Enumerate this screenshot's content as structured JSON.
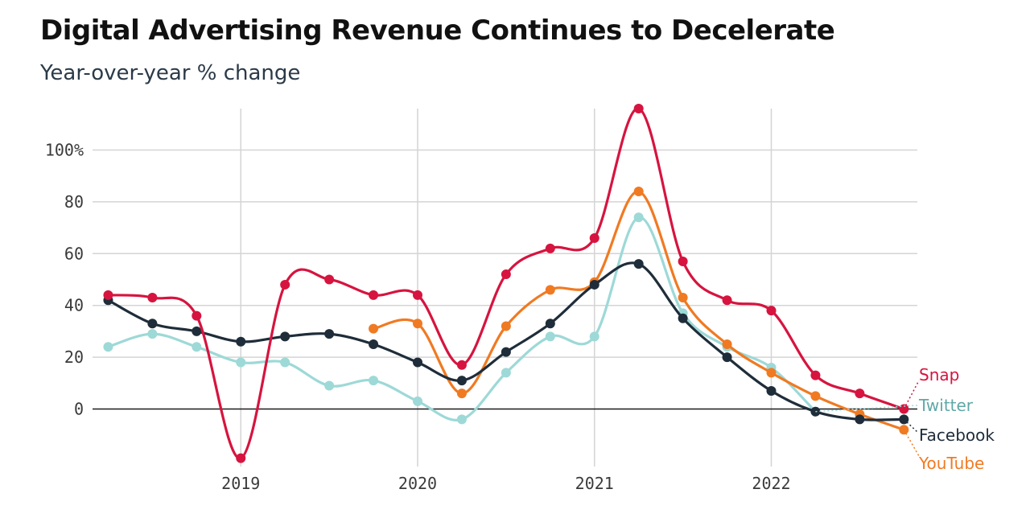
{
  "title": "Digital Advertising Revenue Continues to Decelerate",
  "subtitle": "Year-over-year % change",
  "chart_data": {
    "type": "line",
    "title": "Digital Advertising Revenue Continues to Decelerate",
    "subtitle": "Year-over-year % change",
    "xlabel": "",
    "ylabel": "",
    "ylim": [
      -20,
      118
    ],
    "xlim": [
      2018.2,
      2022.85
    ],
    "y_ticks": [
      {
        "value": 0,
        "label": "0"
      },
      {
        "value": 20,
        "label": "20"
      },
      {
        "value": 40,
        "label": "40"
      },
      {
        "value": 60,
        "label": "60"
      },
      {
        "value": 80,
        "label": "80"
      },
      {
        "value": 100,
        "label": "100%"
      }
    ],
    "x_ticks": [
      {
        "value": 2019,
        "label": "2019"
      },
      {
        "value": 2020,
        "label": "2020"
      },
      {
        "value": 2021,
        "label": "2021"
      },
      {
        "value": 2022,
        "label": "2022"
      }
    ],
    "grid": true,
    "legend": "end-of-line labels, right",
    "series": [
      {
        "name": "Twitter",
        "color": "#9dd9d7",
        "x": [
          2018.25,
          2018.5,
          2018.75,
          2019.0,
          2019.25,
          2019.5,
          2019.75,
          2020.0,
          2020.25,
          2020.5,
          2020.75,
          2021.0,
          2021.25,
          2021.5,
          2021.75,
          2022.0,
          2022.25
        ],
        "y": [
          24,
          29,
          24,
          18,
          18,
          9,
          11,
          3,
          -4,
          14,
          28,
          28,
          74,
          37,
          24,
          16,
          -1
        ]
      },
      {
        "name": "YouTube",
        "color": "#f07a22",
        "x": [
          2019.75,
          2020.0,
          2020.25,
          2020.5,
          2020.75,
          2021.0,
          2021.25,
          2021.5,
          2021.75,
          2022.0,
          2022.25,
          2022.5,
          2022.75
        ],
        "y": [
          31,
          33,
          6,
          32,
          46,
          49,
          84,
          43,
          25,
          14,
          5,
          -2,
          -8
        ]
      },
      {
        "name": "Facebook",
        "color": "#1f2d3a",
        "x": [
          2018.25,
          2018.5,
          2018.75,
          2019.0,
          2019.25,
          2019.5,
          2019.75,
          2020.0,
          2020.25,
          2020.5,
          2020.75,
          2021.0,
          2021.25,
          2021.5,
          2021.75,
          2022.0,
          2022.25,
          2022.5,
          2022.75
        ],
        "y": [
          42,
          33,
          30,
          26,
          28,
          29,
          25,
          18,
          11,
          22,
          33,
          48,
          56,
          35,
          20,
          7,
          -1,
          -4,
          -4
        ]
      },
      {
        "name": "Snap",
        "color": "#d6143f",
        "x": [
          2018.25,
          2018.5,
          2018.75,
          2019.0,
          2019.25,
          2019.5,
          2019.75,
          2020.0,
          2020.25,
          2020.5,
          2020.75,
          2021.0,
          2021.25,
          2021.5,
          2021.75,
          2022.0,
          2022.25,
          2022.5,
          2022.75
        ],
        "y": [
          44,
          43,
          36,
          -19,
          48,
          50,
          44,
          44,
          17,
          52,
          62,
          66,
          116,
          57,
          42,
          38,
          13,
          6,
          0
        ]
      }
    ],
    "end_labels": [
      {
        "series": "Snap",
        "text": "Snap",
        "color": "#d6143f"
      },
      {
        "series": "Twitter",
        "text": "Twitter",
        "color": "#5fa8a6"
      },
      {
        "series": "Facebook",
        "text": "Facebook",
        "color": "#1f2d3a"
      },
      {
        "series": "YouTube",
        "text": "YouTube",
        "color": "#f07a22"
      }
    ]
  }
}
